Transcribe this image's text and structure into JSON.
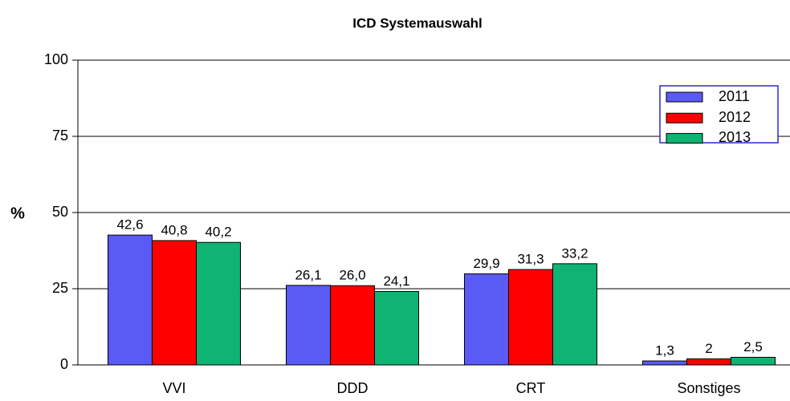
{
  "chart_data": {
    "type": "bar",
    "title": "ICD Systemauswahl",
    "y_label": "%",
    "categories": [
      "VVI",
      "DDD",
      "CRT",
      "Sonstiges"
    ],
    "series": [
      {
        "name": "2011",
        "color": "#5a5af5",
        "values": [
          42.6,
          26.1,
          29.9,
          1.3
        ],
        "value_labels": [
          "42,6",
          "26,1",
          "29,9",
          "1,3"
        ]
      },
      {
        "name": "2012",
        "color": "#ff0000",
        "values": [
          40.8,
          26.0,
          31.3,
          2
        ],
        "value_labels": [
          "40,8",
          "26,0",
          "31,3",
          "2"
        ]
      },
      {
        "name": "2013",
        "color": "#10b472",
        "values": [
          40.2,
          24.1,
          33.2,
          2.5
        ],
        "value_labels": [
          "40,2",
          "24,1",
          "33,2",
          "2,5"
        ]
      }
    ],
    "ylim": [
      0,
      100
    ],
    "yticks": [
      0,
      25,
      50,
      75,
      100
    ],
    "grid": true,
    "legend": "top-right"
  }
}
